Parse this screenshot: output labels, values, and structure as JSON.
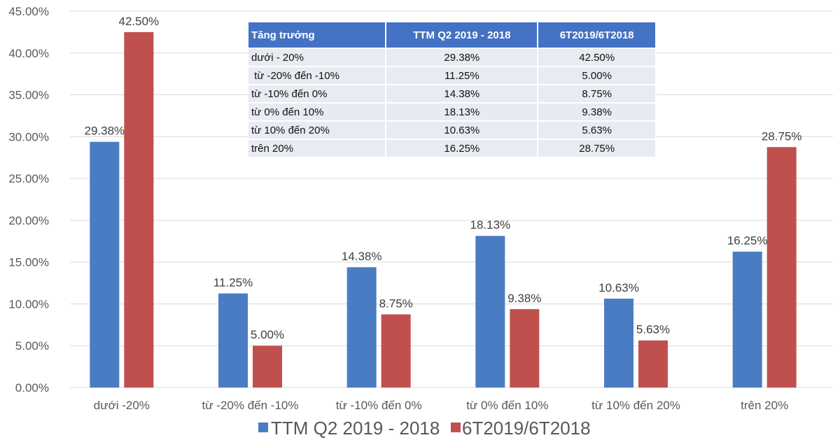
{
  "chart_data": {
    "type": "bar",
    "categories": [
      "dưới -20%",
      "từ -20% đến -10%",
      "từ -10% đến 0%",
      "từ 0% đến 10%",
      "từ 10% đến 20%",
      "trên 20%"
    ],
    "series": [
      {
        "name": "TTM Q2 2019 - 2018",
        "color": "#4a7cc3",
        "values": [
          29.38,
          11.25,
          14.38,
          18.13,
          10.63,
          16.25
        ],
        "labels": [
          "29.38%",
          "11.25%",
          "14.38%",
          "18.13%",
          "10.63%",
          "16.25%"
        ]
      },
      {
        "name": "6T2019/6T2018",
        "color": "#c0504d",
        "values": [
          42.5,
          5.0,
          8.75,
          9.38,
          5.63,
          28.75
        ],
        "labels": [
          "42.50%",
          "5.00%",
          "8.75%",
          "9.38%",
          "5.63%",
          "28.75%"
        ]
      }
    ],
    "ylim": [
      0,
      45
    ],
    "yticks": [
      "0.00%",
      "5.00%",
      "10.00%",
      "15.00%",
      "20.00%",
      "25.00%",
      "30.00%",
      "35.00%",
      "40.00%",
      "45.00%"
    ],
    "grid": true,
    "legend": "bottom",
    "title": "",
    "xlabel": "",
    "ylabel": ""
  },
  "table": {
    "headers": [
      "Tăng trưởng",
      "TTM Q2 2019 - 2018",
      "6T2019/6T2018"
    ],
    "rows": [
      [
        "dưới - 20%",
        "29.38%",
        "42.50%"
      ],
      [
        " từ -20% đến -10%",
        "11.25%",
        "5.00%"
      ],
      [
        "từ -10% đến 0%",
        "14.38%",
        "8.75%"
      ],
      [
        "từ 0% đến 10%",
        "18.13%",
        "9.38%"
      ],
      [
        "từ 10% đến 20%",
        "10.63%",
        "5.63%"
      ],
      [
        "trên 20%",
        "16.25%",
        "28.75%"
      ]
    ]
  }
}
